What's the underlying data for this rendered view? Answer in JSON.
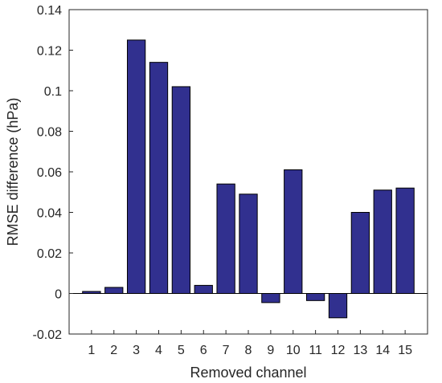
{
  "chart_data": {
    "type": "bar",
    "xlabel": "Removed channel",
    "ylabel": "RMSE difference (hPa)",
    "categories": [
      "1",
      "2",
      "3",
      "4",
      "5",
      "6",
      "7",
      "8",
      "9",
      "10",
      "11",
      "12",
      "13",
      "14",
      "15"
    ],
    "values": [
      0.001,
      0.003,
      0.125,
      0.114,
      0.102,
      0.004,
      0.054,
      0.049,
      -0.0045,
      0.061,
      -0.0035,
      -0.012,
      0.04,
      0.051,
      0.052
    ],
    "ylim": [
      -0.02,
      0.14
    ],
    "yticks": [
      -0.02,
      0,
      0.02,
      0.04,
      0.06,
      0.08,
      0.1,
      0.12,
      0.14
    ],
    "ytick_labels": [
      "-0.02",
      "0",
      "0.02",
      "0.04",
      "0.06",
      "0.08",
      "0.1",
      "0.12",
      "0.14"
    ],
    "grid": false,
    "bar_color": "#31308f",
    "bar_edge_color": "#000000"
  }
}
